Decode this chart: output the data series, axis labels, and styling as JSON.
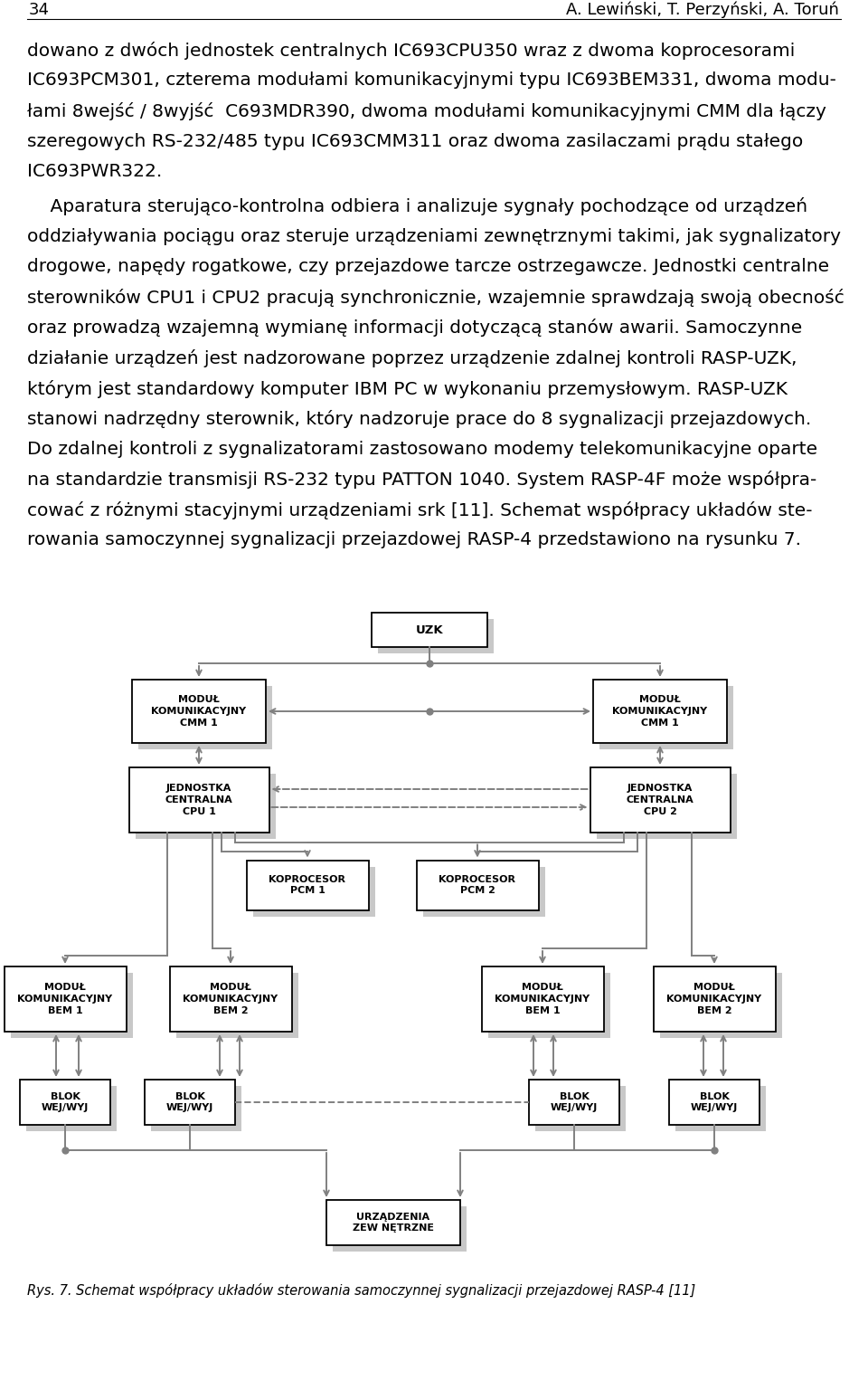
{
  "page_number": "34",
  "header_right": "A. Lewiński, T. Perzyński, A. Toruń",
  "p1_lines": [
    "dowano z dwóch jednostek centralnych IC693CPU350 wraz z dwoma koprocesorami",
    "IC693PCM301, czterema modułami komunikacyjnymi typu IC693BEM331, dwoma modu-",
    "łami 8wejść / 8wyjść  C693MDR390, dwoma modułami komunikacyjnymi CMM dla łączy",
    "szeregowych RS-232/485 typu IC693CMM311 oraz dwoma zasilaczami prądu stałego",
    "IC693PWR322."
  ],
  "p2_lines": [
    "    Aparatura sterująco-kontrolna odbiera i analizuje sygnały pochodzące od urządzeń",
    "oddziaływania pociągu oraz steruje urządzeniami zewnętrznymi takimi, jak sygnalizatory",
    "drogowe, napędy rogatkowe, czy przejazdowe tarcze ostrzegawcze. Jednostki centralne",
    "sterowników CPU1 i CPU2 pracują synchronicznie, wzajemnie sprawdzają swoją obecność",
    "oraz prowadzą wzajemną wymianę informacji dotyczącą stanów awarii. Samoczynne",
    "działanie urządzeń jest nadzorowane poprzez urządzenie zdalnej kontroli RASP-UZK,",
    "którym jest standardowy komputer IBM PC w wykonaniu przemysłowym. RASP-UZK",
    "stanowi nadrzędny sterownik, który nadzoruje prace do 8 sygnalizacji przejazdowych.",
    "Do zdalnej kontroli z sygnalizatorami zastosowano modemy telekomunikacyjne oparte",
    "na standardzie transmisji RS-232 typu PATTON 1040. System RASP-4F może współpra-",
    "cować z różnymi stacyjnymi urządzeniami srk [11]. Schemat współpracy układów ste-",
    "rowania samoczynnej sygnalizacji przejazdowej RASP-4 przedstawiono na rysunku 7."
  ],
  "caption": "Rys. 7. Schemat współpracy układów sterowania samoczynnej sygnalizacji przejazdowej RASP-4 [11]",
  "bg_color": "#ffffff",
  "box_color": "#ffffff",
  "box_edge_color": "#000000",
  "shadow_color": "#c8c8c8",
  "arrow_color": "#808080",
  "text_color": "#000000",
  "uzk_label": "UZK",
  "cmm_label": "MODUŁ\nKOMUNIKACYJNY\nCMM 1",
  "cpu1_label": "JEDNOSTKA\nCENTRALNA\nCPU 1",
  "cpu2_label": "JEDNOSTKA\nCENTRALNA\nCPU 2",
  "pcm1_label": "KOPROCESOR\nPCM 1",
  "pcm2_label": "KOPROCESOR\nPCM 2",
  "bem1_label": "MODUŁ\nKOMUNIKACYJNY\nBEM 1",
  "bem2_label": "MODUŁ\nKOMUNIKACYJNY\nBEM 2",
  "blk_label": "BLOK\nWEJ/WYJ",
  "urz_label": "URZĄDZENIA\nZEW NĘTRZNE"
}
